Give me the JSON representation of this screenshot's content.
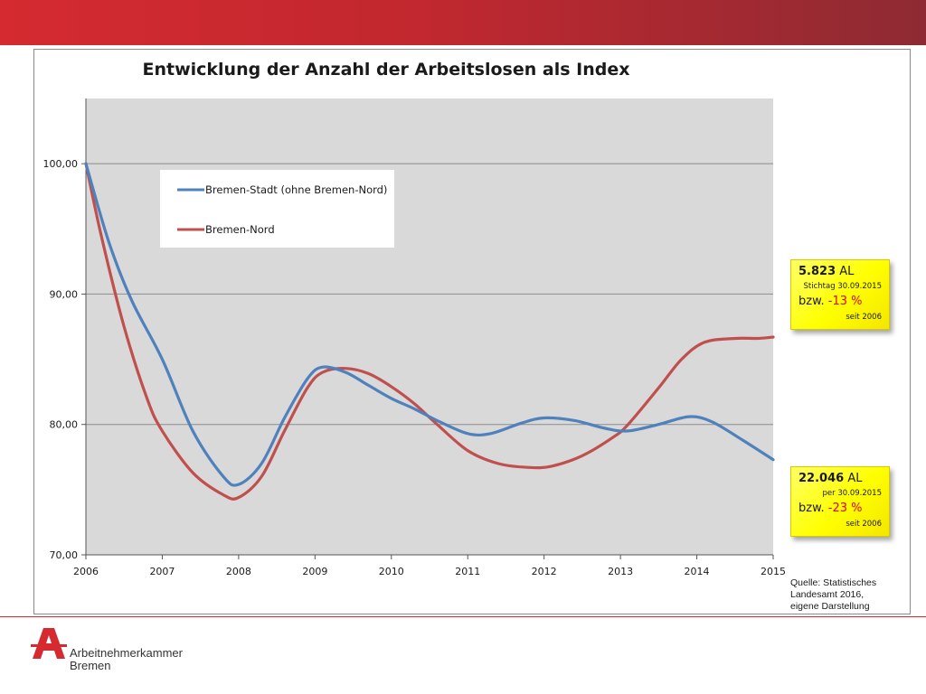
{
  "chart_data": {
    "type": "line",
    "title": "Entwicklung der Anzahl der Arbeitslosen als Index",
    "x": [
      2006,
      2007,
      2008,
      2009,
      2010,
      2011,
      2012,
      2013,
      2014,
      2015
    ],
    "xlabels": [
      "2006",
      "2007",
      "2008",
      "2009",
      "2010",
      "2011",
      "2012",
      "2013",
      "2014",
      "2015"
    ],
    "ylim": [
      70,
      105
    ],
    "yticks": [
      70,
      80,
      90,
      100
    ],
    "ytick_labels": [
      "70,00",
      "80,00",
      "90,00",
      "100,00"
    ],
    "grid": true,
    "legend": "top-left",
    "series": [
      {
        "name": "Bremen-Stadt (ohne Bremen-Nord)",
        "color": "#4f81bd",
        "points": [
          [
            2006.0,
            100.0
          ],
          [
            2006.3,
            94.0
          ],
          [
            2006.6,
            89.5
          ],
          [
            2007.0,
            85.0
          ],
          [
            2007.4,
            79.5
          ],
          [
            2007.8,
            76.0
          ],
          [
            2008.0,
            75.4
          ],
          [
            2008.3,
            77.0
          ],
          [
            2008.6,
            80.5
          ],
          [
            2008.9,
            83.5
          ],
          [
            2009.1,
            84.4
          ],
          [
            2009.4,
            84.0
          ],
          [
            2009.7,
            83.0
          ],
          [
            2010.0,
            82.0
          ],
          [
            2010.3,
            81.2
          ],
          [
            2010.6,
            80.3
          ],
          [
            2011.0,
            79.3
          ],
          [
            2011.3,
            79.3
          ],
          [
            2011.7,
            80.1
          ],
          [
            2012.0,
            80.5
          ],
          [
            2012.4,
            80.3
          ],
          [
            2012.8,
            79.7
          ],
          [
            2013.1,
            79.5
          ],
          [
            2013.5,
            80.0
          ],
          [
            2013.9,
            80.6
          ],
          [
            2014.2,
            80.2
          ],
          [
            2014.6,
            78.8
          ],
          [
            2015.0,
            77.3
          ]
        ]
      },
      {
        "name": "Bremen-Nord",
        "color": "#c0504d",
        "points": [
          [
            2006.0,
            100.0
          ],
          [
            2006.2,
            94.5
          ],
          [
            2006.5,
            87.5
          ],
          [
            2006.8,
            82.0
          ],
          [
            2007.0,
            79.5
          ],
          [
            2007.4,
            76.3
          ],
          [
            2007.8,
            74.6
          ],
          [
            2008.0,
            74.4
          ],
          [
            2008.3,
            76.0
          ],
          [
            2008.6,
            79.5
          ],
          [
            2008.9,
            82.8
          ],
          [
            2009.1,
            84.0
          ],
          [
            2009.4,
            84.3
          ],
          [
            2009.7,
            83.9
          ],
          [
            2010.0,
            82.9
          ],
          [
            2010.3,
            81.6
          ],
          [
            2010.6,
            80.0
          ],
          [
            2011.0,
            78.0
          ],
          [
            2011.4,
            77.0
          ],
          [
            2011.8,
            76.7
          ],
          [
            2012.1,
            76.8
          ],
          [
            2012.5,
            77.6
          ],
          [
            2012.9,
            79.0
          ],
          [
            2013.1,
            80.0
          ],
          [
            2013.5,
            82.8
          ],
          [
            2013.8,
            85.0
          ],
          [
            2014.1,
            86.3
          ],
          [
            2014.5,
            86.6
          ],
          [
            2014.8,
            86.6
          ],
          [
            2015.0,
            86.7
          ]
        ]
      }
    ]
  },
  "callouts": {
    "nord": {
      "value": "5.823",
      "unit": "AL",
      "line2": "Stichtag 30.09.2015",
      "bzw": "bzw.",
      "pct": "-13 %",
      "line4": "seit 2006"
    },
    "stadt": {
      "value": "22.046",
      "unit": "AL",
      "line2": "per 30.09.2015",
      "bzw": "bzw.",
      "pct": "-23 %",
      "line4": "seit 2006"
    }
  },
  "source": {
    "line1": "Quelle: Statistisches",
    "line2": "Landesamt  2016,",
    "line3": "eigene Darstellung"
  },
  "logo": {
    "line1": "Arbeitnehmerkammer",
    "line2": "Bremen"
  },
  "colors": {
    "banner": "#d42a30",
    "callout": "#ffff00",
    "plot_bg": "#d9d9d9"
  }
}
